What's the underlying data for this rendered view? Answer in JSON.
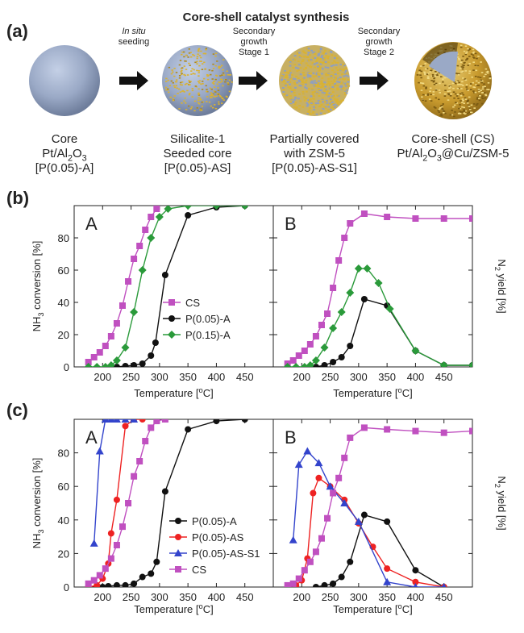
{
  "figure": {
    "panel_a_label": "(a)",
    "panel_b_label": "(b)",
    "panel_c_label": "(c)",
    "title": "Core-shell catalyst synthesis",
    "stages": [
      {
        "lines": [
          "Core",
          "Pt/Al<sub>2</sub>O<sub>3</sub>",
          "[P(0.05)-A]"
        ]
      },
      {
        "lines": [
          "Silicalite-1",
          "Seeded core",
          "[P(0.05)-AS]"
        ]
      },
      {
        "lines": [
          "Partially covered",
          "with ZSM-5",
          "[P(0.05)-AS-S1]"
        ]
      },
      {
        "lines": [
          "Core-shell (CS)",
          "Pt/Al<sub>2</sub>O<sub>3</sub>@Cu/ZSM-5"
        ]
      }
    ],
    "arrows": [
      {
        "lines": [
          "<i>In situ</i>",
          "seeding"
        ]
      },
      {
        "lines": [
          "Secondary",
          "growth",
          "Stage 1"
        ]
      },
      {
        "lines": [
          "Secondary",
          "growth",
          "Stage 2"
        ]
      }
    ],
    "colors": {
      "core": "#9aa9c6",
      "seed": "#d9b233",
      "CS": "#c050c0",
      "P(0.05)-A": "#111111",
      "P(0.15)-A": "#2a9a3a",
      "P(0.05)-AS": "#ee2222",
      "P(0.05)-AS-S1": "#3344cc"
    }
  },
  "chart_data": [
    {
      "id": "b-A",
      "type": "line",
      "panel_label": "A",
      "xlabel": "Temperature [<sup>o</sup>C]",
      "ylabel": "NH<sub>3</sub> conversion [%]",
      "xlim": [
        150,
        500
      ],
      "ylim": [
        0,
        100
      ],
      "xticks": [
        200,
        250,
        300,
        350,
        400,
        450
      ],
      "yticks": [
        0,
        20,
        40,
        60,
        80
      ],
      "legend": "center",
      "series": [
        {
          "name": "CS",
          "marker": "square",
          "color": "#c050c0",
          "x": [
            175,
            185,
            195,
            205,
            215,
            225,
            235,
            245,
            255,
            265,
            275,
            285,
            295
          ],
          "y": [
            3,
            6,
            9,
            13,
            19,
            27,
            38,
            53,
            67,
            75,
            85,
            93,
            98
          ]
        },
        {
          "name": "P(0.05)-A",
          "marker": "circle",
          "color": "#111111",
          "x": [
            225,
            240,
            255,
            270,
            285,
            293,
            310,
            350,
            400,
            450
          ],
          "y": [
            0,
            0.5,
            1,
            2,
            7,
            15,
            57,
            94,
            99,
            100
          ]
        },
        {
          "name": "P(0.15)-A",
          "marker": "diamond",
          "color": "#2a9a3a",
          "x": [
            175,
            190,
            205,
            215,
            225,
            240,
            255,
            270,
            285,
            300,
            315,
            350,
            400,
            450
          ],
          "y": [
            0,
            0,
            0,
            1,
            4,
            12,
            34,
            60,
            80,
            93,
            98,
            100,
            100,
            100
          ]
        }
      ]
    },
    {
      "id": "b-B",
      "type": "line",
      "panel_label": "B",
      "ylabel": "N<sub>2</sub> yield [%]",
      "xlabel": "Temperature [<sup>o</sup>C]",
      "xlim": [
        150,
        500
      ],
      "ylim": [
        0,
        100
      ],
      "xticks": [
        200,
        250,
        300,
        350,
        400,
        450
      ],
      "series": [
        {
          "name": "CS",
          "marker": "square",
          "color": "#c050c0",
          "x": [
            175,
            185,
            195,
            205,
            215,
            225,
            235,
            245,
            255,
            265,
            275,
            285,
            310,
            350,
            400,
            450,
            500
          ],
          "y": [
            2,
            4,
            7,
            10,
            14,
            19,
            26,
            33,
            49,
            66,
            80,
            89,
            95,
            93,
            92,
            92,
            92
          ]
        },
        {
          "name": "P(0.05)-A",
          "marker": "circle",
          "color": "#111111",
          "x": [
            225,
            240,
            255,
            270,
            285,
            310,
            350,
            400,
            450,
            500
          ],
          "y": [
            0,
            1,
            3,
            6,
            13,
            42,
            38,
            10,
            1,
            1
          ]
        },
        {
          "name": "P(0.15)-A",
          "marker": "diamond",
          "color": "#2a9a3a",
          "x": [
            175,
            190,
            205,
            215,
            225,
            240,
            255,
            270,
            285,
            300,
            315,
            335,
            355,
            400,
            450,
            500
          ],
          "y": [
            0,
            0,
            0,
            1,
            4,
            12,
            24,
            34,
            46,
            61,
            61,
            52,
            36,
            10,
            1,
            1
          ]
        }
      ]
    },
    {
      "id": "c-A",
      "type": "line",
      "panel_label": "A",
      "xlabel": "Temperature [<sup>o</sup>C]",
      "ylabel": "NH<sub>3</sub> conversion [%]",
      "xlim": [
        150,
        500
      ],
      "ylim": [
        0,
        100
      ],
      "xticks": [
        200,
        250,
        300,
        350,
        400,
        450
      ],
      "yticks": [
        0,
        20,
        40,
        60,
        80
      ],
      "legend": "bottom-right",
      "series": [
        {
          "name": "P(0.05)-A",
          "marker": "circle",
          "color": "#111111",
          "x": [
            175,
            190,
            200,
            210,
            225,
            240,
            255,
            270,
            285,
            295,
            310,
            350,
            400,
            450
          ],
          "y": [
            0,
            0,
            0,
            0.5,
            1,
            1,
            2,
            6,
            8,
            15,
            57,
            94,
            99,
            100
          ]
        },
        {
          "name": "P(0.05)-AS",
          "marker": "circle",
          "color": "#ee2222",
          "x": [
            175,
            190,
            200,
            210,
            215,
            225,
            240,
            255,
            270
          ],
          "y": [
            0,
            1,
            5,
            14,
            32,
            52,
            96,
            100,
            100
          ]
        },
        {
          "name": "P(0.05)-AS-S1",
          "marker": "triangle",
          "color": "#3344cc",
          "x": [
            185,
            195,
            205,
            215,
            225,
            240,
            255
          ],
          "y": [
            26,
            81,
            100,
            100,
            100,
            100,
            100
          ]
        },
        {
          "name": "CS",
          "marker": "square",
          "color": "#c050c0",
          "x": [
            175,
            185,
            195,
            205,
            215,
            225,
            235,
            245,
            255,
            265,
            275,
            285,
            295,
            310
          ],
          "y": [
            2,
            4,
            7,
            11,
            17,
            25,
            36,
            50,
            66,
            75,
            87,
            95,
            99,
            100
          ]
        }
      ]
    },
    {
      "id": "c-B",
      "type": "line",
      "panel_label": "B",
      "ylabel": "N<sub>2</sub> yield [%]",
      "xlabel": "Temperature [<sup>o</sup>C]",
      "xlim": [
        150,
        500
      ],
      "ylim": [
        0,
        100
      ],
      "xticks": [
        200,
        250,
        300,
        350,
        400,
        450
      ],
      "series": [
        {
          "name": "P(0.05)-A",
          "marker": "circle",
          "color": "#111111",
          "x": [
            225,
            240,
            255,
            270,
            285,
            310,
            350,
            400,
            450
          ],
          "y": [
            0,
            1,
            2,
            6,
            15,
            43,
            39,
            10,
            0
          ]
        },
        {
          "name": "P(0.05)-AS",
          "marker": "circle",
          "color": "#ee2222",
          "x": [
            175,
            190,
            200,
            210,
            220,
            230,
            250,
            275,
            300,
            325,
            350,
            400,
            450
          ],
          "y": [
            0,
            1,
            4,
            17,
            56,
            65,
            60,
            52,
            38,
            24,
            11,
            3,
            0
          ]
        },
        {
          "name": "P(0.05)-AS-S1",
          "marker": "triangle",
          "color": "#3344cc",
          "x": [
            185,
            195,
            210,
            230,
            250,
            275,
            300,
            350,
            400,
            450
          ],
          "y": [
            28,
            73,
            81,
            74,
            60,
            50,
            39,
            3,
            0,
            0
          ]
        },
        {
          "name": "CS",
          "marker": "square",
          "color": "#c050c0",
          "x": [
            175,
            185,
            195,
            205,
            215,
            225,
            235,
            245,
            255,
            265,
            275,
            285,
            310,
            350,
            400,
            450,
            500
          ],
          "y": [
            1,
            2,
            5,
            10,
            15,
            21,
            29,
            41,
            56,
            65,
            77,
            89,
            95,
            94,
            93,
            92,
            93
          ]
        }
      ]
    }
  ]
}
